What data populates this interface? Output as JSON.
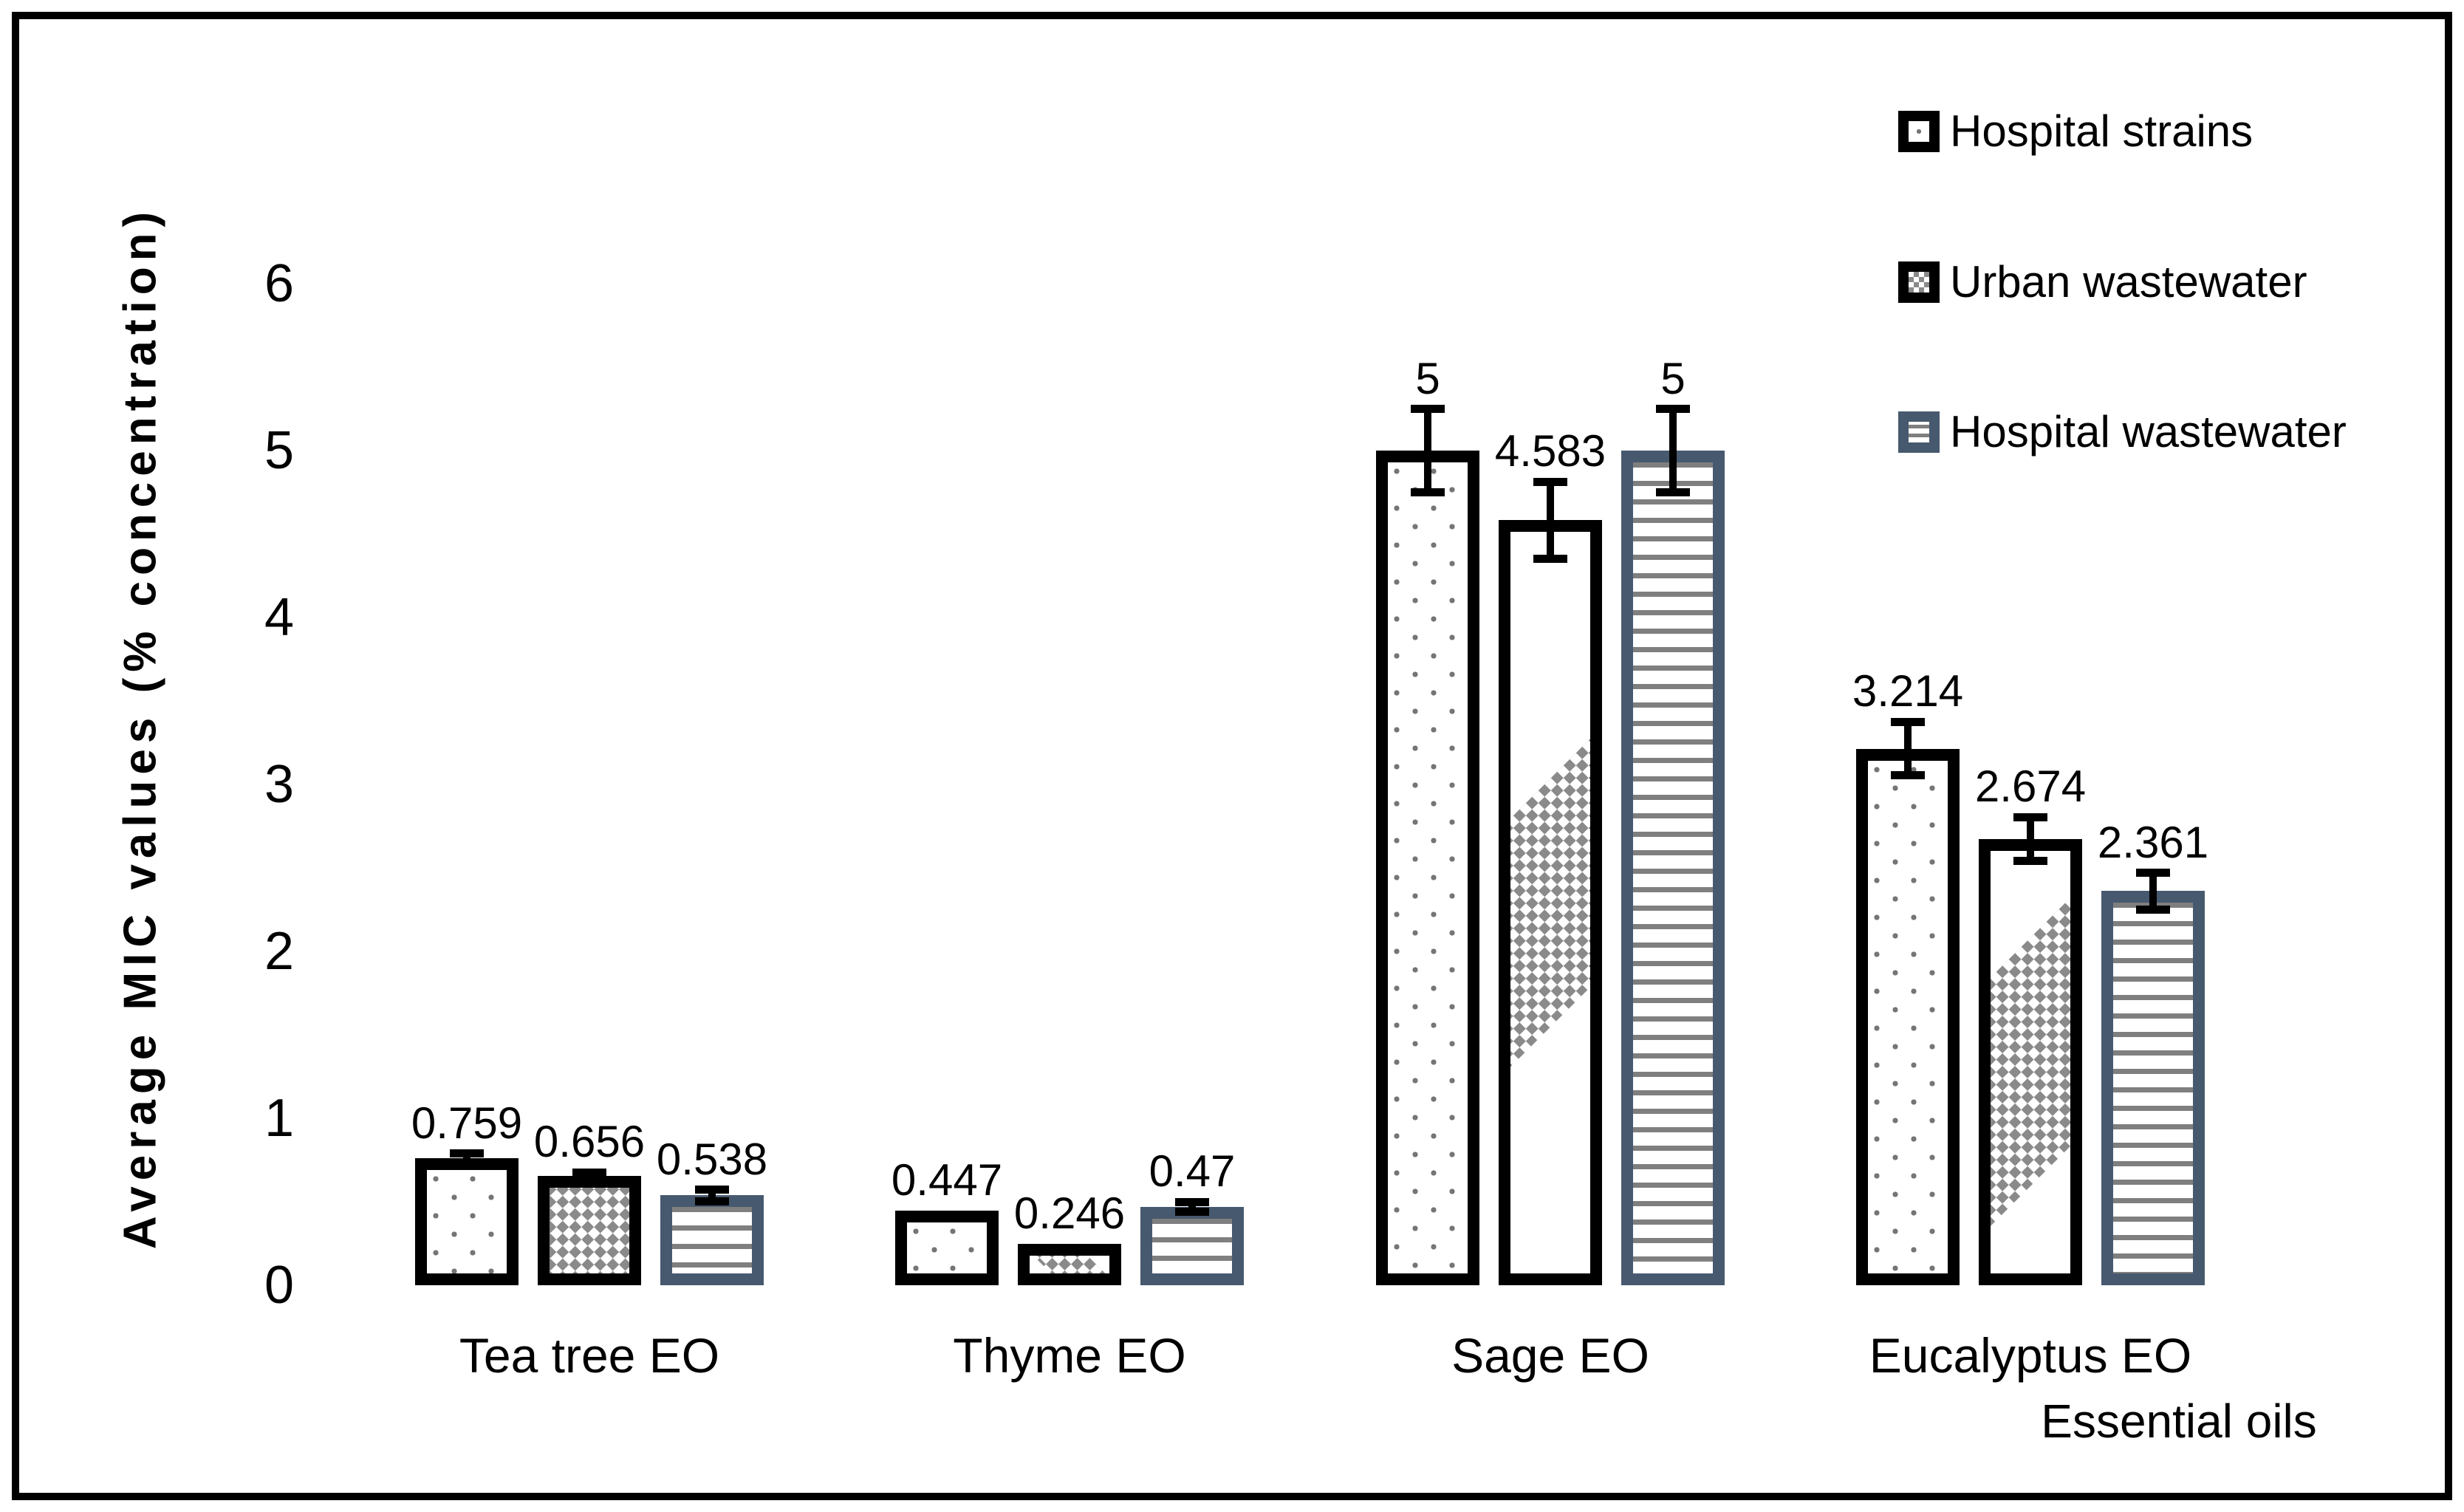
{
  "y_axis": {
    "title": "Average MIC values (% concentration)",
    "ticks": [
      "0",
      "1",
      "2",
      "3",
      "4",
      "5",
      "6"
    ],
    "min": 0,
    "max": 6
  },
  "x_axis": {
    "title": "Essential oils"
  },
  "legend": [
    {
      "label": "Hospital strains",
      "pattern": "dots",
      "border_color": "#000000"
    },
    {
      "label": "Urban wastewater",
      "pattern": "checker",
      "border_color": "#000000"
    },
    {
      "label": "Hospital wastewater",
      "pattern": "hlines",
      "border_color": "#47596e"
    }
  ],
  "colors": {
    "bar_border_black": "#000000",
    "bar_border_slate": "#47596e",
    "pattern_gray": "#7f7f7f",
    "error_bar": "#000000"
  },
  "chart_data": {
    "type": "bar",
    "title": "",
    "xlabel": "Essential oils",
    "ylabel": "Average MIC values (% concentration)",
    "ylim": [
      0,
      6
    ],
    "grid": false,
    "legend_position": "top-right",
    "categories": [
      "Tea tree EO",
      "Thyme EO",
      "Sage EO",
      "Eucalyptus EO"
    ],
    "series": [
      {
        "name": "Hospital strains",
        "pattern": "dots",
        "border_color": "#000000",
        "values": [
          0.759,
          0.447,
          5,
          3.214
        ],
        "labels": [
          "0.759",
          "0.447",
          "5",
          "3.214"
        ],
        "errors": [
          0.03,
          0,
          0.25,
          0.16
        ]
      },
      {
        "name": "Urban wastewater",
        "pattern": "checker",
        "border_color": "#000000",
        "values": [
          0.656,
          0.246,
          4.583,
          2.674
        ],
        "labels": [
          "0.656",
          "0.246",
          "4.583",
          "2.674"
        ],
        "errors": [
          0.02,
          0,
          0.23,
          0.13
        ]
      },
      {
        "name": "Hospital wastewater",
        "pattern": "hlines",
        "border_color": "#47596e",
        "values": [
          0.538,
          0.47,
          5,
          2.361
        ],
        "labels": [
          "0.538",
          "0.47",
          "5",
          "2.361"
        ],
        "errors": [
          0.035,
          0.03,
          0.25,
          0.11
        ]
      }
    ]
  }
}
